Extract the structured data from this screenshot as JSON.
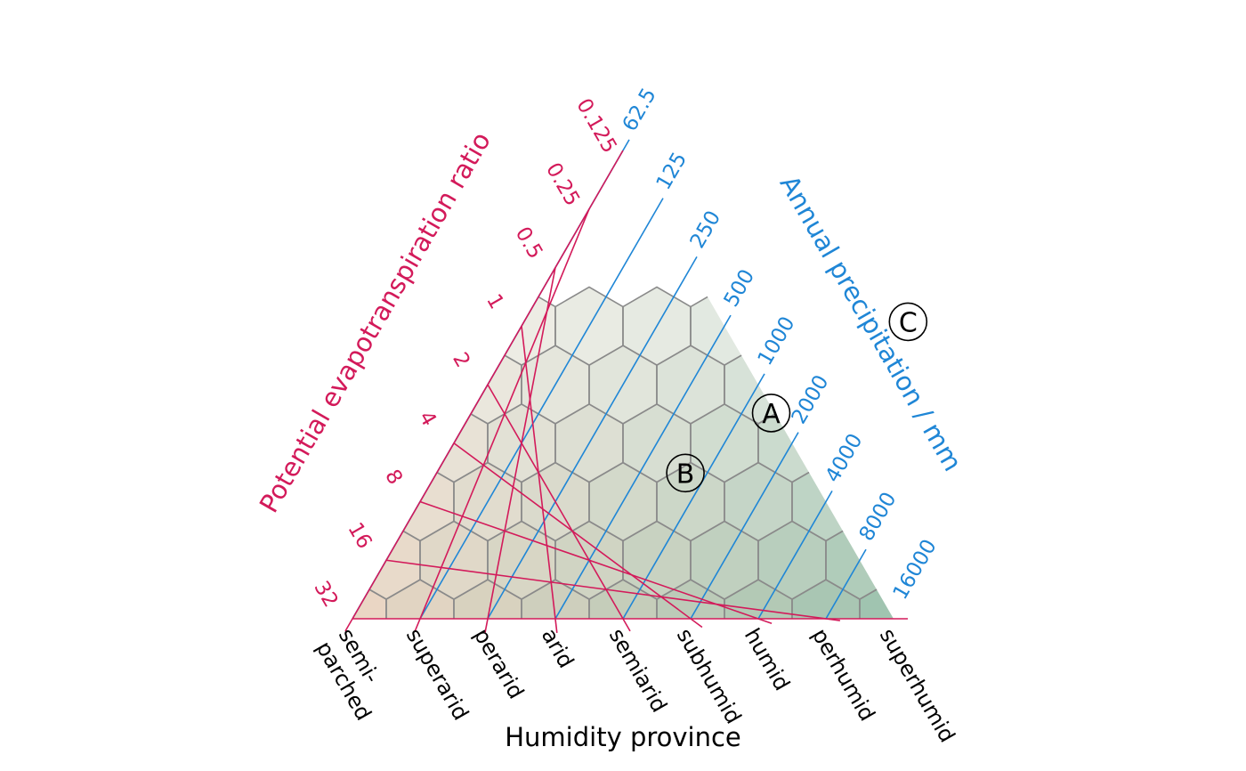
{
  "chart_data": {
    "type": "holdridge_triangle",
    "colors": {
      "pet": "#d31a5a",
      "precip": "#1f86d6",
      "hex_border": "#8a8a8a",
      "text": "#000000"
    },
    "left_axis": {
      "title": "Potential evapotranspiration ratio",
      "ticks": [
        "32",
        "16",
        "8",
        "4",
        "2",
        "1",
        "0.5",
        "0.25",
        "0.125"
      ]
    },
    "right_axis": {
      "title": "Annual precipitation / mm",
      "ticks": [
        "62.5",
        "125",
        "250",
        "500",
        "1000",
        "2000",
        "4000",
        "8000",
        "16000"
      ]
    },
    "bottom_axis": {
      "title": "Humidity province",
      "provinces": [
        "semi-\nparched",
        "superarid",
        "perarid",
        "arid",
        "semiarid",
        "subhumid",
        "humid",
        "perhumid",
        "superhumid"
      ]
    },
    "points": [
      {
        "label": "A",
        "pet_ratio": 2.8,
        "precipitation_mm": 1350
      },
      {
        "label": "B",
        "pet_ratio": 5.7,
        "precipitation_mm": 800
      },
      {
        "label": "C",
        "pet_ratio": 0.95,
        "precipitation_mm": 3200
      }
    ]
  }
}
